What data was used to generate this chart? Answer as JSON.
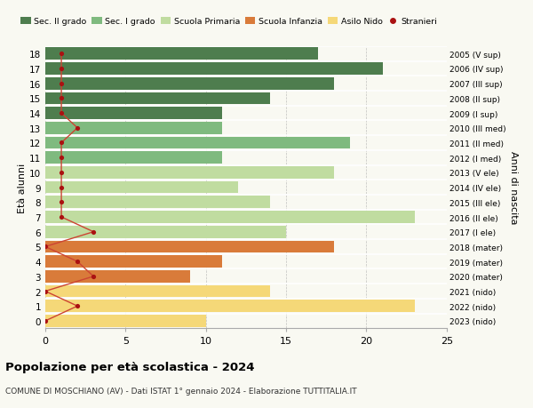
{
  "ages": [
    18,
    17,
    16,
    15,
    14,
    13,
    12,
    11,
    10,
    9,
    8,
    7,
    6,
    5,
    4,
    3,
    2,
    1,
    0
  ],
  "years": [
    "2005 (V sup)",
    "2006 (IV sup)",
    "2007 (III sup)",
    "2008 (II sup)",
    "2009 (I sup)",
    "2010 (III med)",
    "2011 (II med)",
    "2012 (I med)",
    "2013 (V ele)",
    "2014 (IV ele)",
    "2015 (III ele)",
    "2016 (II ele)",
    "2017 (I ele)",
    "2018 (mater)",
    "2019 (mater)",
    "2020 (mater)",
    "2021 (nido)",
    "2022 (nido)",
    "2023 (nido)"
  ],
  "values": [
    17,
    21,
    18,
    14,
    11,
    11,
    19,
    11,
    18,
    12,
    14,
    23,
    15,
    18,
    11,
    9,
    14,
    23,
    10
  ],
  "stranieri": [
    1,
    1,
    1,
    1,
    1,
    2,
    1,
    1,
    1,
    1,
    1,
    1,
    3,
    0,
    2,
    3,
    0,
    2,
    0
  ],
  "colors": [
    "#4e7d4e",
    "#4e7d4e",
    "#4e7d4e",
    "#4e7d4e",
    "#4e7d4e",
    "#7fba7f",
    "#7fba7f",
    "#7fba7f",
    "#c0dca0",
    "#c0dca0",
    "#c0dca0",
    "#c0dca0",
    "#c0dca0",
    "#d97b3a",
    "#d97b3a",
    "#d97b3a",
    "#f5d878",
    "#f5d878",
    "#f5d878"
  ],
  "legend_labels": [
    "Sec. II grado",
    "Sec. I grado",
    "Scuola Primaria",
    "Scuola Infanzia",
    "Asilo Nido",
    "Stranieri"
  ],
  "legend_colors": [
    "#4e7d4e",
    "#7fba7f",
    "#c0dca0",
    "#d97b3a",
    "#f5d878",
    "#cc2222"
  ],
  "title": "Popolazione per età scolastica - 2024",
  "subtitle": "COMUNE DI MOSCHIANO (AV) - Dati ISTAT 1° gennaio 2024 - Elaborazione TUTTITALIA.IT",
  "ylabel_left": "Età alunni",
  "ylabel_right": "Anni di nascita",
  "xlim": [
    0,
    25
  ],
  "bg_color": "#f9f9f2",
  "bar_height": 0.82,
  "stranieri_color": "#aa1111",
  "stranieri_line_color": "#cc4433"
}
